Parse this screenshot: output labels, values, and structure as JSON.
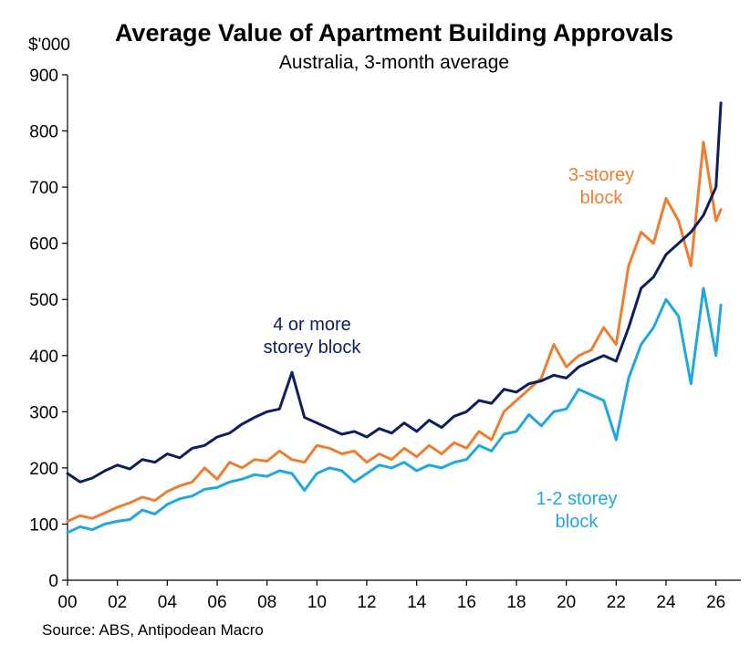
{
  "chart_data": {
    "type": "line",
    "title": "Average Value of Apartment Building Approvals",
    "subtitle": "Australia, 3-month average",
    "ylabel": "$'000",
    "source": "Source: ABS, Antipodean Macro",
    "ylim": [
      0,
      900
    ],
    "yticks": [
      0,
      100,
      200,
      300,
      400,
      500,
      600,
      700,
      800,
      900
    ],
    "xlim": [
      2000,
      2027
    ],
    "xticks": [
      {
        "value": 2000,
        "label": "00"
      },
      {
        "value": 2002,
        "label": "02"
      },
      {
        "value": 2004,
        "label": "04"
      },
      {
        "value": 2006,
        "label": "06"
      },
      {
        "value": 2008,
        "label": "08"
      },
      {
        "value": 2010,
        "label": "10"
      },
      {
        "value": 2012,
        "label": "12"
      },
      {
        "value": 2014,
        "label": "14"
      },
      {
        "value": 2016,
        "label": "16"
      },
      {
        "value": 2018,
        "label": "18"
      },
      {
        "value": 2020,
        "label": "20"
      },
      {
        "value": 2022,
        "label": "22"
      },
      {
        "value": 2024,
        "label": "24"
      },
      {
        "value": 2026,
        "label": "26"
      }
    ],
    "grid": false,
    "legend": "none",
    "series": [
      {
        "label_lines": [
          "1-2 storey",
          "block"
        ],
        "color": "#1FA7E0",
        "x": [
          2000.0,
          2000.5,
          2001.0,
          2001.5,
          2002.0,
          2002.5,
          2003.0,
          2003.5,
          2004.0,
          2004.5,
          2005.0,
          2005.5,
          2006.0,
          2006.5,
          2007.0,
          2007.5,
          2008.0,
          2008.5,
          2009.0,
          2009.5,
          2010.0,
          2010.5,
          2011.0,
          2011.5,
          2012.0,
          2012.5,
          2013.0,
          2013.5,
          2014.0,
          2014.5,
          2015.0,
          2015.5,
          2016.0,
          2016.5,
          2017.0,
          2017.5,
          2018.0,
          2018.5,
          2019.0,
          2019.5,
          2020.0,
          2020.5,
          2021.0,
          2021.5,
          2022.0,
          2022.5,
          2023.0,
          2023.5,
          2024.0,
          2024.5,
          2025.0,
          2025.5,
          2026.0,
          2026.2
        ],
        "y": [
          85,
          95,
          90,
          100,
          105,
          108,
          125,
          118,
          135,
          145,
          150,
          162,
          165,
          175,
          180,
          188,
          185,
          195,
          190,
          160,
          190,
          200,
          195,
          175,
          190,
          205,
          200,
          210,
          195,
          205,
          200,
          210,
          215,
          240,
          230,
          260,
          265,
          295,
          275,
          300,
          305,
          340,
          330,
          320,
          250,
          360,
          420,
          450,
          500,
          470,
          350,
          520,
          400,
          490
        ]
      },
      {
        "label_lines": [
          "3-storey",
          "block"
        ],
        "color": "#ED7D31",
        "x": [
          2000.0,
          2000.5,
          2001.0,
          2001.5,
          2002.0,
          2002.5,
          2003.0,
          2003.5,
          2004.0,
          2004.5,
          2005.0,
          2005.5,
          2006.0,
          2006.5,
          2007.0,
          2007.5,
          2008.0,
          2008.5,
          2009.0,
          2009.5,
          2010.0,
          2010.5,
          2011.0,
          2011.5,
          2012.0,
          2012.5,
          2013.0,
          2013.5,
          2014.0,
          2014.5,
          2015.0,
          2015.5,
          2016.0,
          2016.5,
          2017.0,
          2017.5,
          2018.0,
          2018.5,
          2019.0,
          2019.5,
          2020.0,
          2020.5,
          2021.0,
          2021.5,
          2022.0,
          2022.5,
          2023.0,
          2023.5,
          2024.0,
          2024.5,
          2025.0,
          2025.5,
          2026.0,
          2026.2
        ],
        "y": [
          105,
          115,
          110,
          120,
          130,
          138,
          148,
          142,
          158,
          168,
          175,
          200,
          180,
          210,
          200,
          215,
          212,
          230,
          215,
          210,
          240,
          235,
          225,
          230,
          210,
          225,
          215,
          235,
          220,
          240,
          225,
          245,
          235,
          265,
          250,
          300,
          320,
          340,
          360,
          420,
          380,
          400,
          410,
          450,
          420,
          560,
          620,
          600,
          680,
          640,
          560,
          780,
          640,
          660
        ]
      },
      {
        "label_lines": [
          "4 or more",
          "storey block"
        ],
        "color": "#0C1F5E",
        "x": [
          2000.0,
          2000.5,
          2001.0,
          2001.5,
          2002.0,
          2002.5,
          2003.0,
          2003.5,
          2004.0,
          2004.5,
          2005.0,
          2005.5,
          2006.0,
          2006.5,
          2007.0,
          2007.5,
          2008.0,
          2008.5,
          2009.0,
          2009.5,
          2010.0,
          2010.5,
          2011.0,
          2011.5,
          2012.0,
          2012.5,
          2013.0,
          2013.5,
          2014.0,
          2014.5,
          2015.0,
          2015.5,
          2016.0,
          2016.5,
          2017.0,
          2017.5,
          2018.0,
          2018.5,
          2019.0,
          2019.5,
          2020.0,
          2020.5,
          2021.0,
          2021.5,
          2022.0,
          2022.5,
          2023.0,
          2023.5,
          2024.0,
          2024.5,
          2025.0,
          2025.5,
          2026.0,
          2026.2
        ],
        "y": [
          190,
          175,
          182,
          195,
          205,
          198,
          215,
          210,
          225,
          218,
          235,
          240,
          255,
          262,
          278,
          290,
          300,
          305,
          370,
          290,
          280,
          270,
          260,
          265,
          255,
          270,
          262,
          280,
          265,
          285,
          272,
          292,
          300,
          320,
          315,
          340,
          335,
          350,
          355,
          365,
          360,
          380,
          390,
          400,
          390,
          450,
          520,
          540,
          580,
          600,
          620,
          650,
          700,
          850
        ]
      }
    ],
    "annotations": [
      {
        "series": 2,
        "lines": [
          "4 or more",
          "storey block"
        ]
      },
      {
        "series": 1,
        "lines": [
          "3-storey",
          "block"
        ]
      },
      {
        "series": 0,
        "lines": [
          "1-2 storey",
          "block"
        ]
      }
    ]
  }
}
